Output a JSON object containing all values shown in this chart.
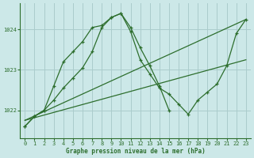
{
  "title": "Graphe pression niveau de la mer (hPa)",
  "bg_color": "#cce8e8",
  "grid_color": "#aacccc",
  "line_color": "#2d6e2d",
  "xlim": [
    -0.5,
    23.5
  ],
  "ylim": [
    1021.3,
    1024.65
  ],
  "yticks": [
    1022,
    1023,
    1024
  ],
  "xticks": [
    0,
    1,
    2,
    3,
    4,
    5,
    6,
    7,
    8,
    9,
    10,
    11,
    12,
    13,
    14,
    15,
    16,
    17,
    18,
    19,
    20,
    21,
    22,
    23
  ],
  "series_nomarker_1": {
    "x": [
      0,
      23
    ],
    "y": [
      1021.75,
      1024.25
    ]
  },
  "series_nomarker_2": {
    "x": [
      0,
      23
    ],
    "y": [
      1021.75,
      1023.25
    ]
  },
  "series_marker_1": {
    "x": [
      0,
      1,
      2,
      3,
      4,
      5,
      6,
      7,
      8,
      9,
      10,
      11,
      12,
      13,
      14,
      15,
      16,
      17,
      18,
      19,
      20,
      21,
      22,
      23
    ],
    "y": [
      1021.6,
      1021.85,
      1022.0,
      1022.25,
      1022.55,
      1022.8,
      1023.05,
      1023.45,
      1024.05,
      1024.3,
      1024.4,
      1023.95,
      1023.25,
      1022.9,
      1022.55,
      1022.4,
      1022.15,
      1021.9,
      1022.25,
      1022.45,
      1022.65,
      1023.1,
      1023.9,
      1024.25
    ]
  },
  "series_marker_2": {
    "x": [
      0,
      1,
      2,
      3,
      4,
      5,
      6,
      7,
      8,
      9,
      10,
      11,
      12,
      13,
      14,
      15
    ],
    "y": [
      1021.6,
      1021.85,
      1022.0,
      1022.6,
      1023.2,
      1023.45,
      1023.7,
      1024.05,
      1024.1,
      1024.3,
      1024.4,
      1024.05,
      1023.55,
      1023.1,
      1022.6,
      1022.0
    ]
  }
}
